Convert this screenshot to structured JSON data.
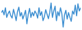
{
  "chart_data": {
    "type": "line",
    "x": [
      0,
      1,
      2,
      3,
      4,
      5,
      6,
      7,
      8,
      9,
      10,
      11,
      12,
      13,
      14,
      15,
      16,
      17,
      18,
      19,
      20,
      21,
      22,
      23,
      24,
      25,
      26,
      27,
      28,
      29,
      30,
      31,
      32,
      33,
      34,
      35,
      36,
      37,
      38,
      39,
      40,
      41,
      42,
      43,
      44,
      45,
      46,
      47,
      48,
      49,
      50,
      51,
      52,
      53,
      54,
      55,
      56,
      57,
      58,
      59
    ],
    "values": [
      55,
      62,
      48,
      70,
      40,
      52,
      60,
      45,
      38,
      65,
      50,
      30,
      58,
      72,
      44,
      55,
      35,
      48,
      62,
      20,
      50,
      68,
      40,
      56,
      45,
      60,
      52,
      38,
      70,
      46,
      58,
      30,
      42,
      64,
      50,
      36,
      55,
      85,
      40,
      60,
      75,
      30,
      58,
      45,
      70,
      52,
      10,
      48,
      62,
      35,
      55,
      40,
      28,
      60,
      50,
      78,
      45,
      82,
      60,
      70
    ],
    "color": "#3d8fd1",
    "xlim": [
      0,
      59
    ],
    "ylim": [
      5,
      90
    ],
    "tick_labels": false
  }
}
